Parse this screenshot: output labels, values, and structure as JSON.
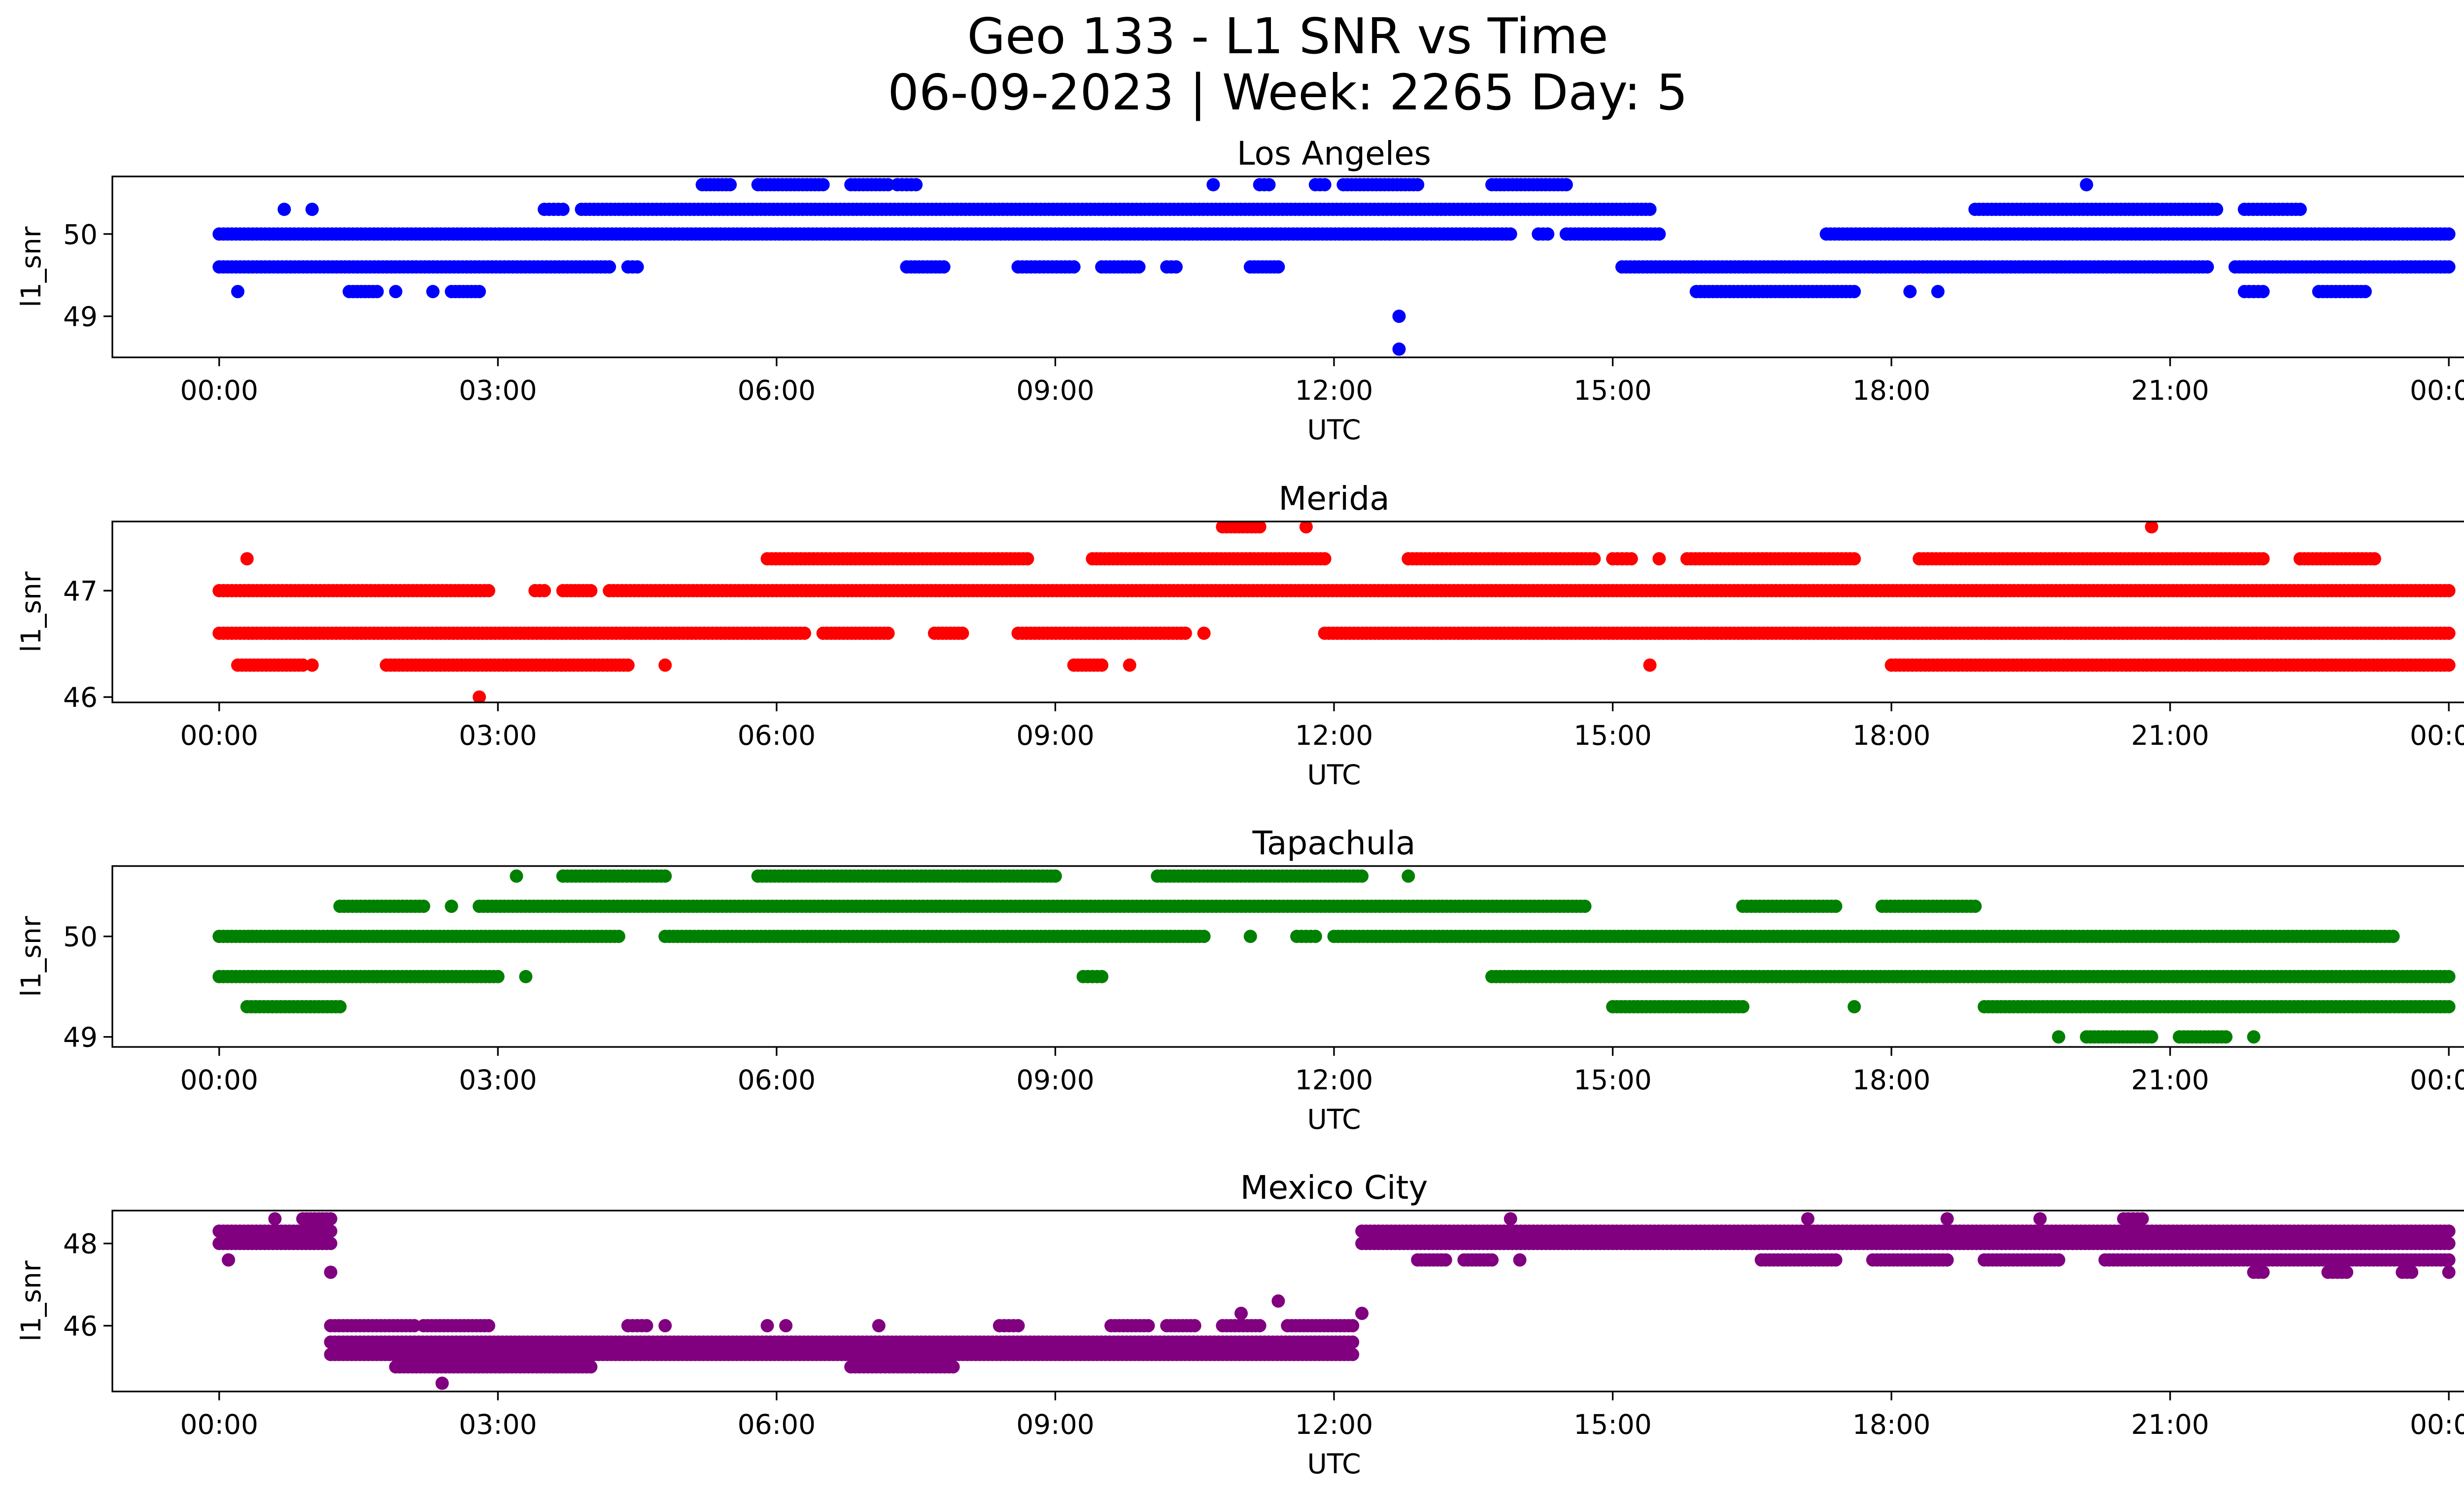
{
  "chart_data": {
    "type": "scatter",
    "title": "Geo 133 - L1 SNR vs Time",
    "subtitle": "06-09-2023 | Week: 2265 Day: 5",
    "x_tick_labels": [
      "00:00",
      "03:00",
      "06:00",
      "09:00",
      "12:00",
      "15:00",
      "18:00",
      "21:00",
      "00:00"
    ],
    "x_tick_hours": [
      0,
      3,
      6,
      9,
      12,
      15,
      18,
      21,
      24
    ],
    "xlim_hours": [
      -1.15,
      25.15
    ],
    "xlabel": "UTC",
    "ylabel": "l1_snr",
    "grid": false,
    "panels": [
      {
        "title": "Los Angeles",
        "color": "#0000ff",
        "ylim": [
          48.5,
          50.7
        ],
        "yticks": [
          49,
          50
        ],
        "levels": [
          {
            "y": 50.6,
            "segments": [
              [
                5.2,
                5.5
              ],
              [
                5.8,
                6.5
              ],
              [
                6.8,
                7.2
              ],
              [
                7.3,
                7.5
              ],
              [
                10.7,
                10.7
              ],
              [
                11.2,
                11.3
              ],
              [
                11.8,
                11.9
              ],
              [
                12.1,
                12.9
              ],
              [
                13.7,
                14.5
              ],
              [
                20.1,
                20.1
              ]
            ]
          },
          {
            "y": 50.3,
            "segments": [
              [
                0.7,
                0.7
              ],
              [
                1.0,
                1.0
              ],
              [
                3.5,
                3.7
              ],
              [
                3.9,
                15.4
              ],
              [
                18.9,
                21.5
              ],
              [
                21.8,
                22.4
              ]
            ]
          },
          {
            "y": 50.0,
            "segments": [
              [
                0.0,
                13.9
              ],
              [
                14.2,
                14.3
              ],
              [
                14.5,
                15.5
              ],
              [
                17.3,
                24.0
              ]
            ]
          },
          {
            "y": 49.6,
            "segments": [
              [
                0.0,
                4.2
              ],
              [
                4.4,
                4.5
              ],
              [
                7.4,
                7.8
              ],
              [
                8.6,
                9.2
              ],
              [
                9.5,
                9.9
              ],
              [
                10.2,
                10.3
              ],
              [
                11.1,
                11.4
              ],
              [
                15.1,
                21.4
              ],
              [
                21.7,
                24.0
              ]
            ]
          },
          {
            "y": 49.3,
            "segments": [
              [
                0.2,
                0.2
              ],
              [
                1.4,
                1.7
              ],
              [
                1.9,
                1.9
              ],
              [
                2.3,
                2.3
              ],
              [
                2.5,
                2.8
              ],
              [
                15.9,
                17.6
              ],
              [
                18.2,
                18.2
              ],
              [
                18.5,
                18.5
              ],
              [
                21.8,
                22.0
              ],
              [
                22.6,
                23.1
              ]
            ]
          },
          {
            "y": 49.0,
            "segments": [
              [
                12.7,
                12.7
              ]
            ]
          },
          {
            "y": 48.6,
            "segments": [
              [
                12.7,
                12.7
              ]
            ]
          }
        ]
      },
      {
        "title": "Merida",
        "color": "#ff0000",
        "ylim": [
          45.95,
          47.65
        ],
        "yticks": [
          46,
          47
        ],
        "levels": [
          {
            "y": 47.6,
            "segments": [
              [
                10.8,
                11.2
              ],
              [
                11.7,
                11.7
              ],
              [
                20.8,
                20.8
              ]
            ]
          },
          {
            "y": 47.3,
            "segments": [
              [
                0.3,
                0.3
              ],
              [
                5.9,
                8.7
              ],
              [
                9.4,
                11.9
              ],
              [
                12.8,
                14.8
              ],
              [
                15.0,
                15.2
              ],
              [
                15.5,
                15.5
              ],
              [
                15.8,
                17.6
              ],
              [
                18.3,
                22.0
              ],
              [
                22.4,
                23.2
              ]
            ]
          },
          {
            "y": 47.0,
            "segments": [
              [
                0.0,
                2.9
              ],
              [
                3.4,
                3.5
              ],
              [
                3.7,
                4.0
              ],
              [
                4.2,
                24.0
              ]
            ]
          },
          {
            "y": 46.6,
            "segments": [
              [
                0.0,
                6.3
              ],
              [
                6.5,
                7.2
              ],
              [
                7.7,
                8.0
              ],
              [
                8.6,
                10.4
              ],
              [
                10.6,
                10.6
              ],
              [
                11.9,
                24.0
              ]
            ]
          },
          {
            "y": 46.3,
            "segments": [
              [
                0.2,
                0.9
              ],
              [
                1.0,
                1.0
              ],
              [
                1.8,
                4.4
              ],
              [
                4.8,
                4.8
              ],
              [
                9.2,
                9.5
              ],
              [
                9.8,
                9.8
              ],
              [
                15.4,
                15.4
              ],
              [
                18.0,
                24.0
              ]
            ]
          },
          {
            "y": 46.0,
            "segments": [
              [
                2.8,
                2.8
              ]
            ]
          }
        ]
      },
      {
        "title": "Tapachula",
        "color": "#008000",
        "ylim": [
          48.9,
          50.7
        ],
        "yticks": [
          49,
          50
        ],
        "levels": [
          {
            "y": 50.6,
            "segments": [
              [
                3.2,
                3.2
              ],
              [
                3.7,
                4.8
              ],
              [
                5.8,
                9.0
              ],
              [
                10.1,
                12.3
              ],
              [
                12.8,
                12.8
              ]
            ]
          },
          {
            "y": 50.3,
            "segments": [
              [
                1.3,
                2.2
              ],
              [
                2.5,
                2.5
              ],
              [
                2.8,
                14.7
              ],
              [
                16.4,
                17.4
              ],
              [
                17.9,
                18.9
              ]
            ]
          },
          {
            "y": 50.0,
            "segments": [
              [
                0.0,
                4.3
              ],
              [
                4.8,
                10.6
              ],
              [
                11.1,
                11.1
              ],
              [
                11.6,
                11.8
              ],
              [
                12.0,
                23.4
              ]
            ]
          },
          {
            "y": 49.6,
            "segments": [
              [
                0.0,
                3.0
              ],
              [
                3.3,
                3.3
              ],
              [
                9.3,
                9.5
              ],
              [
                13.7,
                24.0
              ]
            ]
          },
          {
            "y": 49.3,
            "segments": [
              [
                0.3,
                1.3
              ],
              [
                15.0,
                16.4
              ],
              [
                17.6,
                17.6
              ],
              [
                19.0,
                24.0
              ]
            ]
          },
          {
            "y": 49.0,
            "segments": [
              [
                19.8,
                19.8
              ],
              [
                20.1,
                20.8
              ],
              [
                21.1,
                21.6
              ],
              [
                21.9,
                21.9
              ]
            ]
          }
        ]
      },
      {
        "title": "Mexico City",
        "color": "#800080",
        "ylim": [
          44.4,
          48.8
        ],
        "yticks": [
          46,
          48
        ],
        "levels": [
          {
            "y": 48.6,
            "segments": [
              [
                0.6,
                0.6
              ],
              [
                0.9,
                1.2
              ],
              [
                13.9,
                13.9
              ],
              [
                17.1,
                17.1
              ],
              [
                18.6,
                18.6
              ],
              [
                19.6,
                19.6
              ],
              [
                20.5,
                20.7
              ]
            ]
          },
          {
            "y": 48.3,
            "segments": [
              [
                0.0,
                1.2
              ],
              [
                12.3,
                24.0
              ]
            ]
          },
          {
            "y": 48.0,
            "segments": [
              [
                0.0,
                1.2
              ],
              [
                12.3,
                24.0
              ]
            ]
          },
          {
            "y": 47.6,
            "segments": [
              [
                0.1,
                0.1
              ],
              [
                12.9,
                13.2
              ],
              [
                13.4,
                13.7
              ],
              [
                14.0,
                14.0
              ],
              [
                16.6,
                17.4
              ],
              [
                17.8,
                18.6
              ],
              [
                19.0,
                19.8
              ],
              [
                20.3,
                24.0
              ]
            ]
          },
          {
            "y": 47.3,
            "segments": [
              [
                1.2,
                1.2
              ],
              [
                21.9,
                22.0
              ],
              [
                22.7,
                22.9
              ],
              [
                23.5,
                23.6
              ],
              [
                24.0,
                24.0
              ]
            ]
          },
          {
            "y": 46.6,
            "segments": [
              [
                11.4,
                11.4
              ]
            ]
          },
          {
            "y": 46.3,
            "segments": [
              [
                11.0,
                11.0
              ],
              [
                12.3,
                12.3
              ]
            ]
          },
          {
            "y": 46.0,
            "segments": [
              [
                1.2,
                2.1
              ],
              [
                2.2,
                2.9
              ],
              [
                4.4,
                4.6
              ],
              [
                4.8,
                4.8
              ],
              [
                5.9,
                5.9
              ],
              [
                6.1,
                6.1
              ],
              [
                7.1,
                7.1
              ],
              [
                8.4,
                8.6
              ],
              [
                9.6,
                10.0
              ],
              [
                10.2,
                10.5
              ],
              [
                10.8,
                11.2
              ],
              [
                11.5,
                12.2
              ]
            ]
          },
          {
            "y": 45.6,
            "segments": [
              [
                1.2,
                12.2
              ]
            ]
          },
          {
            "y": 45.3,
            "segments": [
              [
                1.2,
                12.2
              ]
            ]
          },
          {
            "y": 45.0,
            "segments": [
              [
                1.9,
                4.0
              ],
              [
                6.8,
                7.9
              ]
            ]
          },
          {
            "y": 44.6,
            "segments": [
              [
                2.4,
                2.4
              ]
            ]
          }
        ]
      }
    ]
  }
}
